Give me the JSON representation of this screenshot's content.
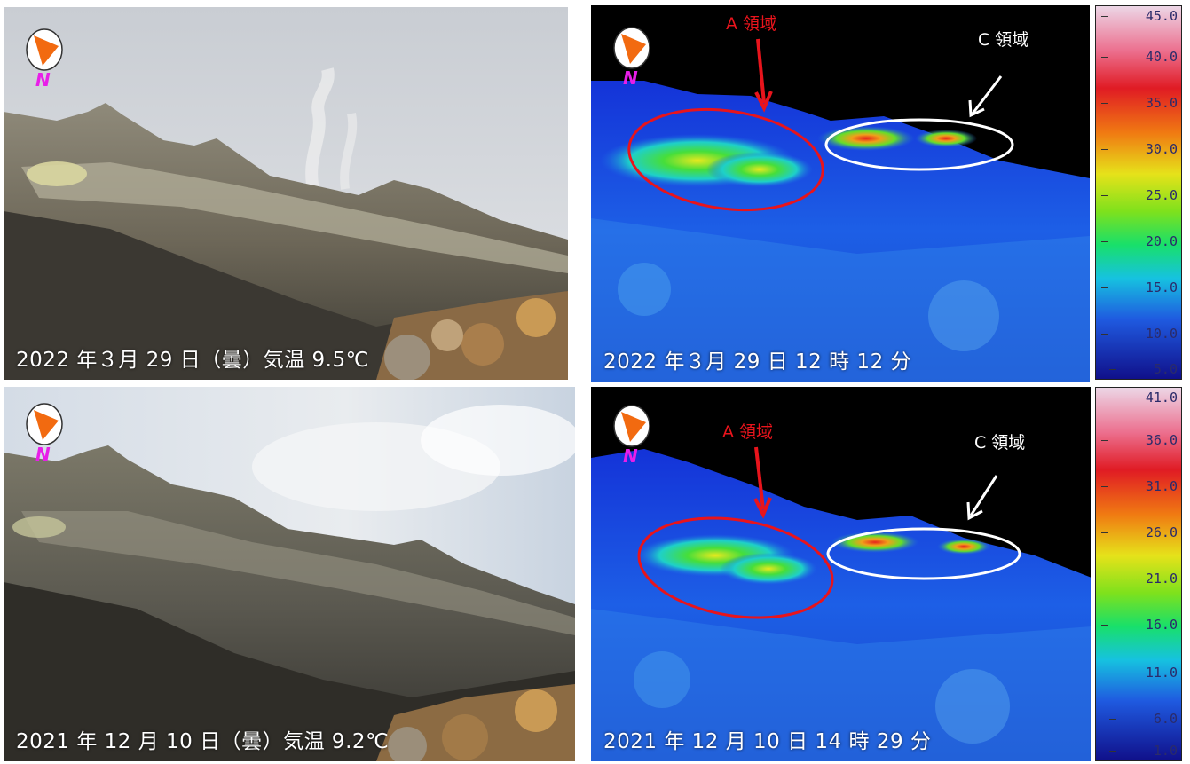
{
  "panels": {
    "photo_2022": {
      "caption": "2022 年３月 29 日（曇）気温 9.5℃"
    },
    "thermal_2022": {
      "caption": "2022 年３月 29 日 12 時 12 分",
      "label_a": "A 領域",
      "label_c": "C 領域",
      "scale_ticks": [
        "45.0",
        "40.0",
        "35.0",
        "30.0",
        "25.0",
        "20.0",
        "15.0",
        "10.0",
        "5.0"
      ]
    },
    "photo_2021": {
      "caption": "2021 年 12 月 10 日（曇）気温 9.2℃"
    },
    "thermal_2021": {
      "caption": "2021 年 12 月 10 日 14 時 29 分",
      "label_a": "A 領域",
      "label_c": "C 領域",
      "scale_ticks": [
        "41.0",
        "36.0",
        "31.0",
        "26.0",
        "21.0",
        "16.0",
        "11.0",
        "6.0",
        "1.0"
      ]
    }
  },
  "compass_letter": "N",
  "colors": {
    "region_a": "#e8141c",
    "region_c": "#ffffff",
    "compass_fill": "#f26a10",
    "compass_letter": "#e81ee8"
  }
}
